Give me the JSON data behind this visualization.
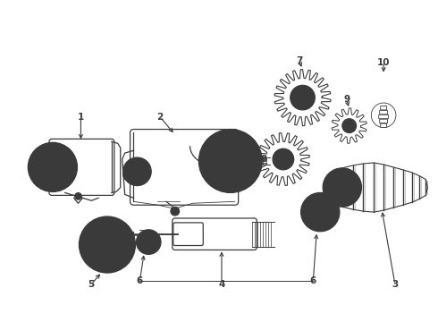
{
  "background_color": "#ffffff",
  "line_color": "#3a3a3a",
  "label_color": "#1a1a1a",
  "figure_width": 4.9,
  "figure_height": 3.6,
  "dpi": 100
}
